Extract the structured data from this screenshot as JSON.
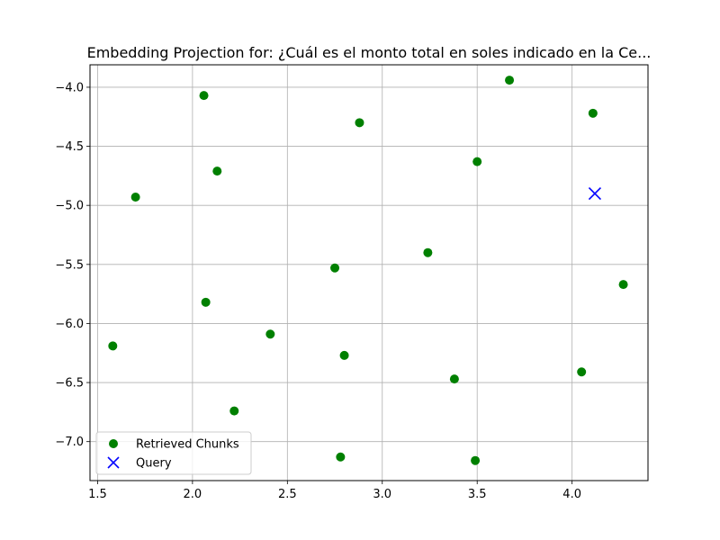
{
  "chart_data": {
    "type": "scatter",
    "title": "Embedding Projection for: ¿Cuál es el monto total en soles indicado en la Ce...",
    "xlabel": "",
    "ylabel": "",
    "xlim": [
      1.46,
      4.4
    ],
    "ylim": [
      -7.33,
      -3.81
    ],
    "grid": true,
    "legend_position": "lower-left",
    "x_ticks": [
      1.5,
      2.0,
      2.5,
      3.0,
      3.5,
      4.0
    ],
    "x_tick_labels": [
      "1.5",
      "2.0",
      "2.5",
      "3.0",
      "3.5",
      "4.0"
    ],
    "y_ticks": [
      -4.0,
      -4.5,
      -5.0,
      -5.5,
      -6.0,
      -6.5,
      -7.0
    ],
    "y_tick_labels": [
      "−4.0",
      "−4.5",
      "−5.0",
      "−5.5",
      "−6.0",
      "−6.5",
      "−7.0"
    ],
    "series": [
      {
        "name": "Retrieved Chunks",
        "marker": "circle",
        "color": "#008000",
        "points": [
          {
            "x": 3.67,
            "y": -3.94
          },
          {
            "x": 2.06,
            "y": -4.07
          },
          {
            "x": 4.11,
            "y": -4.22
          },
          {
            "x": 2.88,
            "y": -4.3
          },
          {
            "x": 3.5,
            "y": -4.63
          },
          {
            "x": 2.13,
            "y": -4.71
          },
          {
            "x": 1.7,
            "y": -4.93
          },
          {
            "x": 3.24,
            "y": -5.4
          },
          {
            "x": 2.75,
            "y": -5.53
          },
          {
            "x": 4.27,
            "y": -5.67
          },
          {
            "x": 2.07,
            "y": -5.82
          },
          {
            "x": 2.41,
            "y": -6.09
          },
          {
            "x": 1.58,
            "y": -6.19
          },
          {
            "x": 2.8,
            "y": -6.27
          },
          {
            "x": 4.05,
            "y": -6.41
          },
          {
            "x": 3.38,
            "y": -6.47
          },
          {
            "x": 2.22,
            "y": -6.74
          },
          {
            "x": 2.78,
            "y": -7.13
          },
          {
            "x": 3.49,
            "y": -7.16
          }
        ]
      },
      {
        "name": "Query",
        "marker": "x",
        "color": "#0000ff",
        "points": [
          {
            "x": 4.12,
            "y": -4.9
          }
        ]
      }
    ]
  }
}
